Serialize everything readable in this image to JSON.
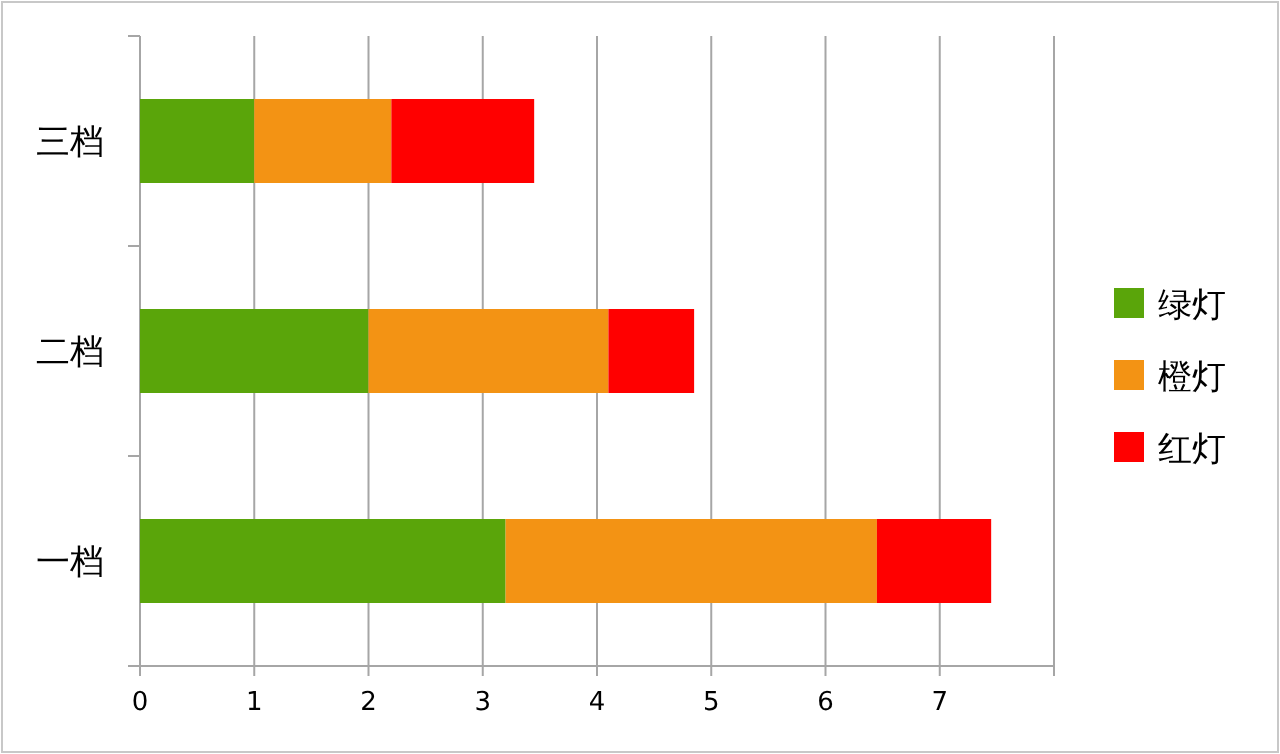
{
  "chart_data": {
    "type": "bar",
    "orientation": "horizontal",
    "stacked": true,
    "categories": [
      "三档",
      "二档",
      "一档"
    ],
    "series": [
      {
        "name": "绿灯",
        "color": "#5aa50a",
        "values": [
          1.0,
          2.0,
          3.2
        ]
      },
      {
        "name": "橙灯",
        "color": "#f39314",
        "values": [
          1.2,
          2.1,
          3.25
        ]
      },
      {
        "name": "红灯",
        "color": "#ff0000",
        "values": [
          1.25,
          0.75,
          1.0
        ]
      }
    ],
    "xlim": [
      0,
      8
    ],
    "xticks": [
      0,
      1,
      2,
      3,
      4,
      5,
      6,
      7,
      {
        "value": 8,
        "label": null
      }
    ],
    "grid": "x",
    "legend": "right"
  }
}
